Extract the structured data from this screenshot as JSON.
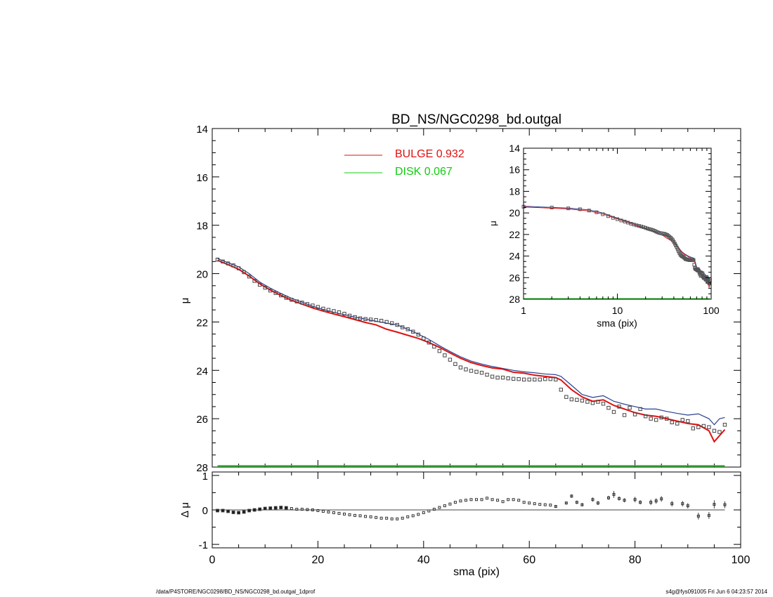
{
  "chart_data": [
    {
      "id": "main",
      "type": "scatter",
      "title": "BD_NS/NGC0298_bd.outgal",
      "ylabel": "μ",
      "xlim": [
        0,
        100
      ],
      "ylim": [
        28,
        14
      ],
      "y_inverted": true,
      "yticks": [
        "14",
        "16",
        "18",
        "20",
        "22",
        "24",
        "26",
        "28"
      ],
      "legend": [
        {
          "label": "BULGE  0.932",
          "color": "#dd1111"
        },
        {
          "label": "DISK  0.067",
          "color": "#11cc11"
        }
      ],
      "legend_position": "top-center",
      "series": [
        {
          "name": "data",
          "style": "squares",
          "color": "#444444",
          "x": [
            1,
            2,
            3,
            4,
            5,
            6,
            7,
            8,
            9,
            10,
            11,
            12,
            13,
            14,
            15,
            16,
            17,
            18,
            19,
            20,
            21,
            22,
            23,
            24,
            25,
            26,
            27,
            28,
            29,
            30,
            31,
            32,
            33,
            34,
            35,
            36,
            37,
            38,
            39,
            40,
            41,
            42,
            43,
            44,
            45,
            46,
            47,
            48,
            49,
            50,
            51,
            52,
            53,
            54,
            55,
            56,
            57,
            58,
            59,
            60,
            61,
            62,
            63,
            64,
            65,
            66,
            67,
            68,
            69,
            70,
            71,
            72,
            73,
            74,
            75,
            76,
            77,
            78,
            79,
            80,
            81,
            82,
            83,
            84,
            85,
            86,
            87,
            88,
            89,
            90,
            91,
            92,
            93,
            94,
            95,
            96,
            97
          ],
          "y": [
            19.42,
            19.5,
            19.58,
            19.66,
            19.78,
            19.94,
            20.12,
            20.3,
            20.46,
            20.58,
            20.7,
            20.8,
            20.9,
            21.0,
            21.08,
            21.15,
            21.2,
            21.26,
            21.32,
            21.38,
            21.45,
            21.5,
            21.55,
            21.6,
            21.66,
            21.74,
            21.8,
            21.85,
            21.88,
            21.9,
            21.92,
            21.95,
            22.0,
            22.05,
            22.12,
            22.22,
            22.3,
            22.4,
            22.52,
            22.68,
            22.85,
            23.02,
            23.2,
            23.38,
            23.56,
            23.74,
            23.88,
            23.96,
            24.02,
            24.06,
            24.1,
            24.18,
            24.26,
            24.3,
            24.3,
            24.33,
            24.35,
            24.36,
            24.38,
            24.38,
            24.38,
            24.38,
            24.36,
            24.36,
            24.38,
            24.8,
            25.1,
            25.2,
            25.22,
            25.25,
            25.3,
            25.35,
            25.3,
            25.38,
            25.55,
            25.72,
            25.5,
            25.85,
            25.55,
            25.82,
            25.6,
            25.9,
            26.0,
            26.05,
            25.95,
            26.0,
            26.15,
            26.2,
            26.05,
            26.1,
            26.4,
            26.35,
            26.3,
            26.35,
            26.5,
            26.55,
            26.25
          ]
        },
        {
          "name": "model",
          "style": "line",
          "color": "#2a3f8f",
          "x": [
            1,
            3,
            5,
            7,
            9,
            11,
            13,
            15,
            17,
            19,
            21,
            23,
            25,
            27,
            29,
            31,
            33,
            35,
            37,
            39,
            41,
            43,
            45,
            47,
            49,
            51,
            53,
            55,
            57,
            59,
            61,
            63,
            65,
            66,
            68,
            70,
            72,
            74,
            76,
            78,
            80,
            82,
            84,
            86,
            88,
            90,
            92,
            94,
            95,
            96,
            97
          ],
          "y": [
            19.38,
            19.55,
            19.72,
            20.0,
            20.35,
            20.6,
            20.82,
            21.02,
            21.18,
            21.35,
            21.48,
            21.6,
            21.7,
            21.8,
            21.88,
            21.97,
            22.05,
            22.12,
            22.3,
            22.5,
            22.72,
            22.98,
            23.22,
            23.44,
            23.62,
            23.74,
            23.84,
            23.92,
            24.0,
            24.06,
            24.1,
            24.15,
            24.18,
            24.25,
            24.62,
            25.0,
            25.12,
            25.05,
            25.28,
            25.4,
            25.5,
            25.6,
            25.6,
            25.7,
            25.78,
            25.85,
            25.8,
            26.0,
            26.25,
            26.0,
            25.95
          ]
        },
        {
          "name": "bulge",
          "style": "line",
          "color": "#dd1111",
          "x": [
            1,
            3,
            5,
            7,
            9,
            11,
            13,
            15,
            17,
            19,
            21,
            23,
            25,
            27,
            29,
            31,
            33,
            35,
            37,
            39,
            41,
            43,
            45,
            47,
            49,
            51,
            53,
            55,
            57,
            59,
            61,
            63,
            65,
            66,
            68,
            70,
            72,
            74,
            76,
            78,
            80,
            82,
            84,
            86,
            88,
            90,
            92,
            94,
            95,
            96,
            97
          ],
          "y": [
            19.45,
            19.63,
            19.82,
            20.1,
            20.42,
            20.68,
            20.9,
            21.1,
            21.26,
            21.42,
            21.55,
            21.67,
            21.78,
            21.9,
            22.02,
            22.12,
            22.3,
            22.42,
            22.55,
            22.68,
            22.85,
            23.05,
            23.28,
            23.5,
            23.68,
            23.8,
            23.9,
            23.95,
            24.08,
            24.12,
            24.2,
            24.25,
            24.3,
            24.4,
            24.8,
            25.1,
            25.28,
            25.22,
            25.45,
            25.6,
            25.75,
            25.85,
            25.9,
            26.0,
            26.1,
            26.2,
            26.25,
            26.5,
            26.95,
            26.7,
            26.45
          ]
        },
        {
          "name": "disk",
          "style": "line",
          "color": "#11cc11",
          "x": [
            1,
            97
          ],
          "y": [
            27.95,
            27.95
          ]
        }
      ]
    },
    {
      "id": "inset",
      "type": "scatter",
      "ylabel": "μ",
      "xlabel": "sma (pix)",
      "x_scale": "log",
      "xlim": [
        1,
        100
      ],
      "ylim": [
        28,
        14
      ],
      "y_inverted": true,
      "xticks": [
        "1",
        "10",
        "100"
      ],
      "yticks": [
        "14",
        "16",
        "18",
        "20",
        "22",
        "24",
        "26",
        "28"
      ],
      "note_series": "same data as main panel, shown on log sma axis"
    },
    {
      "id": "residual",
      "type": "scatter",
      "ylabel": "Δ μ",
      "xlabel": "sma (pix)",
      "xlim": [
        0,
        100
      ],
      "ylim": [
        -1.1,
        1.1
      ],
      "xticks": [
        "0",
        "20",
        "40",
        "60",
        "80",
        "100"
      ],
      "yticks": [
        "1",
        "0",
        "-1"
      ],
      "series": [
        {
          "name": "residual",
          "style": "squares_errorbars",
          "color": "#444444",
          "x": [
            1,
            2,
            3,
            4,
            5,
            6,
            7,
            8,
            9,
            10,
            11,
            12,
            13,
            14,
            15,
            16,
            17,
            18,
            19,
            20,
            21,
            22,
            23,
            24,
            25,
            26,
            27,
            28,
            29,
            30,
            31,
            32,
            33,
            34,
            35,
            36,
            37,
            38,
            39,
            40,
            41,
            42,
            43,
            44,
            45,
            46,
            47,
            48,
            49,
            50,
            51,
            52,
            53,
            54,
            55,
            56,
            57,
            58,
            59,
            60,
            61,
            62,
            63,
            64,
            65,
            67,
            68,
            69,
            70,
            72,
            73,
            75,
            76,
            77,
            78,
            80,
            81,
            83,
            84,
            85,
            87,
            89,
            90,
            92,
            94,
            95,
            97
          ],
          "y": [
            -0.02,
            -0.02,
            -0.04,
            -0.07,
            -0.08,
            -0.06,
            -0.02,
            0.0,
            0.02,
            0.04,
            0.05,
            0.06,
            0.07,
            0.06,
            0.04,
            0.02,
            0.02,
            0.01,
            0.0,
            -0.02,
            -0.04,
            -0.06,
            -0.08,
            -0.1,
            -0.12,
            -0.14,
            -0.16,
            -0.17,
            -0.19,
            -0.2,
            -0.22,
            -0.24,
            -0.24,
            -0.26,
            -0.26,
            -0.24,
            -0.2,
            -0.17,
            -0.13,
            -0.08,
            -0.03,
            0.02,
            0.07,
            0.12,
            0.17,
            0.22,
            0.26,
            0.28,
            0.3,
            0.3,
            0.3,
            0.34,
            0.3,
            0.28,
            0.24,
            0.3,
            0.3,
            0.28,
            0.22,
            0.2,
            0.18,
            0.16,
            0.15,
            0.14,
            0.1,
            0.2,
            0.4,
            0.22,
            0.15,
            0.3,
            0.2,
            0.35,
            0.45,
            0.33,
            0.28,
            0.3,
            0.22,
            0.22,
            0.26,
            0.32,
            0.18,
            0.18,
            0.12,
            -0.18,
            -0.16,
            0.16,
            0.15
          ],
          "err": [
            0.01,
            0.01,
            0.01,
            0.01,
            0.01,
            0.01,
            0.01,
            0.01,
            0.01,
            0.01,
            0.01,
            0.01,
            0.01,
            0.01,
            0.01,
            0.01,
            0.01,
            0.01,
            0.01,
            0.01,
            0.01,
            0.01,
            0.01,
            0.01,
            0.01,
            0.01,
            0.01,
            0.01,
            0.01,
            0.01,
            0.01,
            0.01,
            0.01,
            0.01,
            0.01,
            0.01,
            0.01,
            0.01,
            0.01,
            0.01,
            0.02,
            0.02,
            0.02,
            0.02,
            0.02,
            0.02,
            0.02,
            0.02,
            0.02,
            0.02,
            0.02,
            0.02,
            0.02,
            0.02,
            0.02,
            0.02,
            0.02,
            0.02,
            0.02,
            0.02,
            0.02,
            0.02,
            0.02,
            0.02,
            0.03,
            0.04,
            0.05,
            0.05,
            0.05,
            0.06,
            0.06,
            0.06,
            0.1,
            0.06,
            0.06,
            0.08,
            0.06,
            0.08,
            0.08,
            0.08,
            0.08,
            0.08,
            0.08,
            0.1,
            0.1,
            0.12,
            0.1
          ]
        }
      ]
    }
  ],
  "footer": {
    "path": "/data/P4STORE/NGC0298/BD_NS/NGC0298_bd.outgal_1dprof",
    "stamp": "s4g@fys091005  Fri Jun  6 04:23:57 2014"
  }
}
